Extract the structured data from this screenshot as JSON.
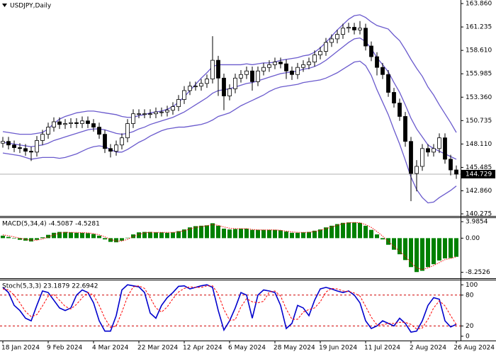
{
  "chart_data": [
    {
      "type": "candlestick",
      "title": "USDJPY,Daily",
      "categories": [
        "18 Jan 2024",
        null,
        null,
        null,
        null,
        null,
        null,
        null,
        "9 Feb 2024",
        null,
        null,
        null,
        null,
        null,
        null,
        null,
        "4 Mar 2024",
        null,
        null,
        null,
        null,
        null,
        null,
        null,
        "22 Mar 2024",
        null,
        null,
        null,
        null,
        null,
        null,
        null,
        "12 Apr 2024",
        null,
        null,
        null,
        null,
        null,
        null,
        null,
        "6 May 2024",
        null,
        null,
        null,
        null,
        null,
        null,
        null,
        "28 May 2024",
        null,
        null,
        null,
        null,
        null,
        null,
        null,
        "19 Jun 2024",
        null,
        null,
        null,
        null,
        null,
        null,
        null,
        "11 Jul 2024",
        null,
        null,
        null,
        null,
        null,
        null,
        null,
        "2 Aug 2024",
        null,
        null,
        null,
        null,
        null,
        null,
        null,
        "26 Aug 2024"
      ],
      "open": [
        148.2,
        148.4,
        148.0,
        147.7,
        147.6,
        147.3,
        147.2,
        148.5,
        149.2,
        150.0,
        150.6,
        150.3,
        150.4,
        150.5,
        150.4,
        150.7,
        150.4,
        150.0,
        149.2,
        147.6,
        147.3,
        148.0,
        148.8,
        150.4,
        151.5,
        151.5,
        151.5,
        151.5,
        151.7,
        151.7,
        151.9,
        152.3,
        153.1,
        154.1,
        154.6,
        154.6,
        154.9,
        155.4,
        157.5,
        155.5,
        153.5,
        154.3,
        155.5,
        155.9,
        156.3,
        155.1,
        156.3,
        156.7,
        157.0,
        157.3,
        157.1,
        156.3,
        155.9,
        156.7,
        157.0,
        157.3,
        158.1,
        158.5,
        159.5,
        159.9,
        160.4,
        161.1,
        161.2,
        160.9,
        161.1,
        159.1,
        157.9,
        156.7,
        155.9,
        153.9,
        152.7,
        151.2,
        148.4,
        144.8,
        145.6,
        147.6,
        147.2,
        147.6,
        148.8,
        146.4,
        145.2
      ],
      "high": [
        148.9,
        148.9,
        148.5,
        148.2,
        148.1,
        147.8,
        149.0,
        149.7,
        150.5,
        151.1,
        151.1,
        150.9,
        151.0,
        151.0,
        151.2,
        151.2,
        150.9,
        150.5,
        149.7,
        148.1,
        148.5,
        149.3,
        150.9,
        152.0,
        152.0,
        152.0,
        152.0,
        152.2,
        152.2,
        152.4,
        152.8,
        153.6,
        154.6,
        155.1,
        155.1,
        155.4,
        155.9,
        160.2,
        158.0,
        156.0,
        154.8,
        156.0,
        156.4,
        156.8,
        156.8,
        156.8,
        157.2,
        157.5,
        157.8,
        157.8,
        157.6,
        156.8,
        157.2,
        157.5,
        157.8,
        158.6,
        159.0,
        160.0,
        160.4,
        160.9,
        161.6,
        161.7,
        161.7,
        161.9,
        161.6,
        159.6,
        158.4,
        157.2,
        156.4,
        154.4,
        153.2,
        151.7,
        148.9,
        146.3,
        148.1,
        148.1,
        148.1,
        149.3,
        149.3,
        146.9,
        145.7
      ],
      "low": [
        147.7,
        147.5,
        147.2,
        147.1,
        146.8,
        146.2,
        146.7,
        148.0,
        148.7,
        149.5,
        149.8,
        149.8,
        149.9,
        149.9,
        149.9,
        149.9,
        149.5,
        148.7,
        147.1,
        146.6,
        146.8,
        147.5,
        148.3,
        149.9,
        151.0,
        151.0,
        151.0,
        151.0,
        151.2,
        151.2,
        151.4,
        151.8,
        152.6,
        153.6,
        154.1,
        154.1,
        154.4,
        154.9,
        153.5,
        151.9,
        153.0,
        153.8,
        155.0,
        155.4,
        154.1,
        154.6,
        155.8,
        156.2,
        156.5,
        156.6,
        155.4,
        155.3,
        155.4,
        156.2,
        156.5,
        156.8,
        157.6,
        158.0,
        159.0,
        159.4,
        159.9,
        160.6,
        160.4,
        160.4,
        158.6,
        157.4,
        155.8,
        155.4,
        153.4,
        152.2,
        150.7,
        147.8,
        141.7,
        142.8,
        145.1,
        146.7,
        146.7,
        147.1,
        145.9,
        144.6,
        144.2
      ],
      "close": [
        148.4,
        148.0,
        147.7,
        147.6,
        147.3,
        147.2,
        148.5,
        149.2,
        150.0,
        150.6,
        150.3,
        150.4,
        150.5,
        150.4,
        150.7,
        150.4,
        150.0,
        149.2,
        147.6,
        147.3,
        148.0,
        148.8,
        150.4,
        151.5,
        151.5,
        151.5,
        151.5,
        151.7,
        151.7,
        151.9,
        152.3,
        153.1,
        154.1,
        154.6,
        154.6,
        154.9,
        155.4,
        157.5,
        155.5,
        153.5,
        154.3,
        155.5,
        155.9,
        156.3,
        155.1,
        156.3,
        156.7,
        157.0,
        157.3,
        157.1,
        156.3,
        155.9,
        156.7,
        157.0,
        157.3,
        158.1,
        158.5,
        159.5,
        159.9,
        160.4,
        161.1,
        161.2,
        160.9,
        161.1,
        159.1,
        157.9,
        156.7,
        155.9,
        153.9,
        152.7,
        151.2,
        148.4,
        144.8,
        145.6,
        147.6,
        147.2,
        147.6,
        148.8,
        146.4,
        145.2,
        144.729
      ],
      "up_color": "#ffffff",
      "down_color": "#000000",
      "series": [
        {
          "color": "#6a5acd",
          "values": [
            149.5,
            149.4,
            149.3,
            149.2,
            149.2,
            149.2,
            149.3,
            149.4,
            149.8,
            150.4,
            150.9,
            151.2,
            151.4,
            151.6,
            151.7,
            151.8,
            151.8,
            151.7,
            151.6,
            151.5,
            151.4,
            151.2,
            151.1,
            151.1,
            151.3,
            151.4,
            151.6,
            151.7,
            151.8,
            152.0,
            152.3,
            152.8,
            153.4,
            154.1,
            154.8,
            155.5,
            156.1,
            156.8,
            157.0,
            157.0,
            157.0,
            157.0,
            157.0,
            157.1,
            157.0,
            157.1,
            157.2,
            157.2,
            157.3,
            157.5,
            157.6,
            157.7,
            157.8,
            158.0,
            158.1,
            158.4,
            158.9,
            159.5,
            160.2,
            160.9,
            161.5,
            162.1,
            162.5,
            162.6,
            162.3,
            161.8,
            161.4,
            161.2,
            161.0,
            160.3,
            159.7,
            158.7,
            157.6,
            156.6,
            155.7,
            154.5,
            153.6,
            152.5,
            151.5,
            150.5,
            149.4
          ]
        },
        {
          "color": "#6a5acd",
          "values": [
            148.3,
            148.2,
            148.1,
            148.0,
            147.9,
            147.8,
            147.9,
            148.0,
            148.2,
            148.5,
            148.7,
            148.9,
            149.1,
            149.3,
            149.5,
            149.7,
            149.8,
            149.8,
            149.7,
            149.5,
            149.3,
            149.2,
            149.3,
            149.5,
            149.8,
            150.0,
            150.3,
            150.5,
            150.7,
            150.9,
            151.1,
            151.4,
            151.7,
            152.1,
            152.5,
            152.9,
            153.3,
            153.8,
            154.1,
            154.2,
            154.3,
            154.5,
            154.7,
            154.9,
            155.0,
            155.2,
            155.4,
            155.6,
            155.8,
            156.0,
            156.1,
            156.2,
            156.3,
            156.5,
            156.6,
            156.8,
            157.1,
            157.5,
            158.0,
            158.5,
            159.0,
            159.5,
            159.9,
            160.0,
            159.6,
            158.8,
            157.8,
            157.0,
            156.2,
            155.0,
            153.9,
            152.5,
            151.0,
            149.8,
            148.9,
            148.0,
            147.6,
            147.3,
            147.0,
            146.7,
            146.4
          ]
        },
        {
          "color": "#6a5acd",
          "values": [
            147.1,
            147.0,
            146.9,
            146.8,
            146.6,
            146.4,
            146.5,
            146.6,
            146.6,
            146.6,
            146.5,
            146.6,
            146.8,
            147.0,
            147.3,
            147.6,
            147.8,
            147.9,
            147.8,
            147.5,
            147.2,
            147.2,
            147.5,
            147.9,
            148.3,
            148.6,
            149.0,
            149.3,
            149.6,
            149.8,
            149.9,
            150.0,
            150.0,
            150.1,
            150.2,
            150.3,
            150.5,
            150.8,
            151.2,
            151.4,
            151.6,
            152.0,
            152.4,
            152.7,
            153.0,
            153.3,
            153.6,
            154.0,
            154.3,
            154.5,
            154.6,
            154.7,
            154.8,
            155.0,
            155.1,
            155.2,
            155.3,
            155.5,
            155.8,
            156.1,
            156.5,
            156.9,
            157.3,
            157.4,
            156.9,
            155.8,
            154.2,
            152.8,
            151.4,
            149.7,
            148.1,
            146.3,
            144.4,
            143.0,
            142.1,
            141.5,
            141.6,
            142.1,
            142.5,
            142.9,
            143.4
          ]
        }
      ],
      "last_price": {
        "value": 144.729,
        "label": "144.729"
      },
      "ylim": [
        140.04,
        164.26
      ],
      "yticks": [
        {
          "value": 163.86,
          "label": "163.860"
        },
        161.235,
        {
          "value": 158.61,
          "label": "158.610"
        },
        155.985,
        {
          "value": 153.36,
          "label": "153.360"
        },
        150.735,
        {
          "value": 148.11,
          "label": "148.110"
        },
        145.485,
        {
          "value": 142.86,
          "label": "142.860"
        },
        140.275
      ]
    },
    {
      "type": "macd",
      "title": "MACD(5,34,4) -4.5087 -4.5281",
      "series": [
        {
          "type": "bar",
          "color": "#008000",
          "values": [
            0.6,
            0.3,
            -0.1,
            -0.4,
            -0.6,
            -0.8,
            -0.4,
            0.2,
            0.8,
            1.3,
            1.5,
            1.5,
            1.4,
            1.3,
            1.3,
            1.2,
            1.0,
            0.6,
            -0.3,
            -0.9,
            -1.0,
            -0.6,
            0.1,
            0.9,
            1.4,
            1.5,
            1.5,
            1.4,
            1.4,
            1.3,
            1.4,
            1.7,
            2.1,
            2.6,
            2.9,
            3.0,
            3.1,
            3.6,
            3.0,
            2.3,
            2.1,
            2.2,
            2.3,
            2.3,
            2.0,
            2.0,
            2.0,
            2.0,
            2.0,
            1.9,
            1.6,
            1.3,
            1.3,
            1.4,
            1.5,
            1.8,
            2.1,
            2.6,
            3.0,
            3.4,
            3.7,
            3.8,
            3.8,
            3.7,
            3.0,
            2.0,
            0.9,
            -0.3,
            -1.6,
            -2.8,
            -3.9,
            -5.3,
            -7.0,
            -8.2,
            -7.9,
            -7.0,
            -6.3,
            -5.4,
            -4.9,
            -4.8,
            -4.5087
          ]
        },
        {
          "type": "line",
          "color": "#ff0000",
          "values": [
            0.8,
            0.6,
            0.3,
            0.0,
            -0.3,
            -0.5,
            -0.5,
            -0.2,
            0.3,
            0.8,
            1.2,
            1.4,
            1.4,
            1.4,
            1.3,
            1.3,
            1.1,
            0.8,
            0.3,
            -0.3,
            -0.7,
            -0.7,
            -0.3,
            0.4,
            0.9,
            1.3,
            1.4,
            1.4,
            1.4,
            1.4,
            1.4,
            1.5,
            1.8,
            2.2,
            2.6,
            2.8,
            3.0,
            3.3,
            3.1,
            2.7,
            2.4,
            2.3,
            2.3,
            2.3,
            2.1,
            2.0,
            2.0,
            2.0,
            2.0,
            1.9,
            1.7,
            1.5,
            1.4,
            1.4,
            1.4,
            1.6,
            1.9,
            2.3,
            2.7,
            3.1,
            3.5,
            3.7,
            3.8,
            3.7,
            3.3,
            2.6,
            1.6,
            0.5,
            -0.8,
            -2.0,
            -3.2,
            -4.4,
            -5.9,
            -7.2,
            -7.6,
            -7.2,
            -6.6,
            -5.9,
            -5.2,
            -4.9,
            -4.5281
          ]
        }
      ],
      "ylim": [
        -9.7,
        5.03
      ],
      "yticks": [
        3.9854,
        {
          "value": 0,
          "label": "0.00"
        },
        -8.2526
      ]
    },
    {
      "type": "stochastic",
      "title": "Stoch(5,3,3) 23.1879 22.6942",
      "series": [
        {
          "color": "#0000cd",
          "values": [
            95,
            85,
            60,
            50,
            35,
            30,
            60,
            88,
            85,
            70,
            55,
            50,
            55,
            80,
            90,
            85,
            65,
            30,
            10,
            10,
            40,
            90,
            100,
            98,
            96,
            85,
            45,
            35,
            60,
            75,
            85,
            97,
            98,
            92,
            95,
            98,
            100,
            95,
            50,
            12,
            30,
            55,
            85,
            80,
            35,
            80,
            90,
            88,
            85,
            60,
            15,
            25,
            60,
            55,
            40,
            70,
            92,
            95,
            92,
            88,
            85,
            88,
            80,
            65,
            30,
            15,
            20,
            30,
            25,
            20,
            35,
            25,
            8,
            10,
            30,
            60,
            75,
            72,
            30,
            18,
            23.1879
          ]
        },
        {
          "color": "#ff0000",
          "dashed": true,
          "values": [
            92,
            90,
            80,
            65,
            48,
            38,
            42,
            59,
            78,
            81,
            70,
            58,
            53,
            62,
            75,
            85,
            80,
            60,
            35,
            17,
            20,
            47,
            77,
            96,
            98,
            93,
            75,
            55,
            47,
            57,
            73,
            86,
            93,
            96,
            95,
            95,
            98,
            98,
            82,
            52,
            31,
            32,
            57,
            73,
            67,
            65,
            68,
            86,
            88,
            78,
            53,
            33,
            33,
            47,
            52,
            55,
            67,
            86,
            93,
            92,
            88,
            87,
            84,
            78,
            58,
            37,
            22,
            22,
            25,
            25,
            27,
            27,
            23,
            14,
            16,
            33,
            55,
            69,
            59,
            40,
            22.6942
          ]
        }
      ],
      "levels": [
        80,
        20
      ],
      "level_color": "#d00000",
      "ylim": [
        -7,
        110
      ],
      "yticks": [
        100,
        80,
        20,
        0
      ]
    }
  ]
}
